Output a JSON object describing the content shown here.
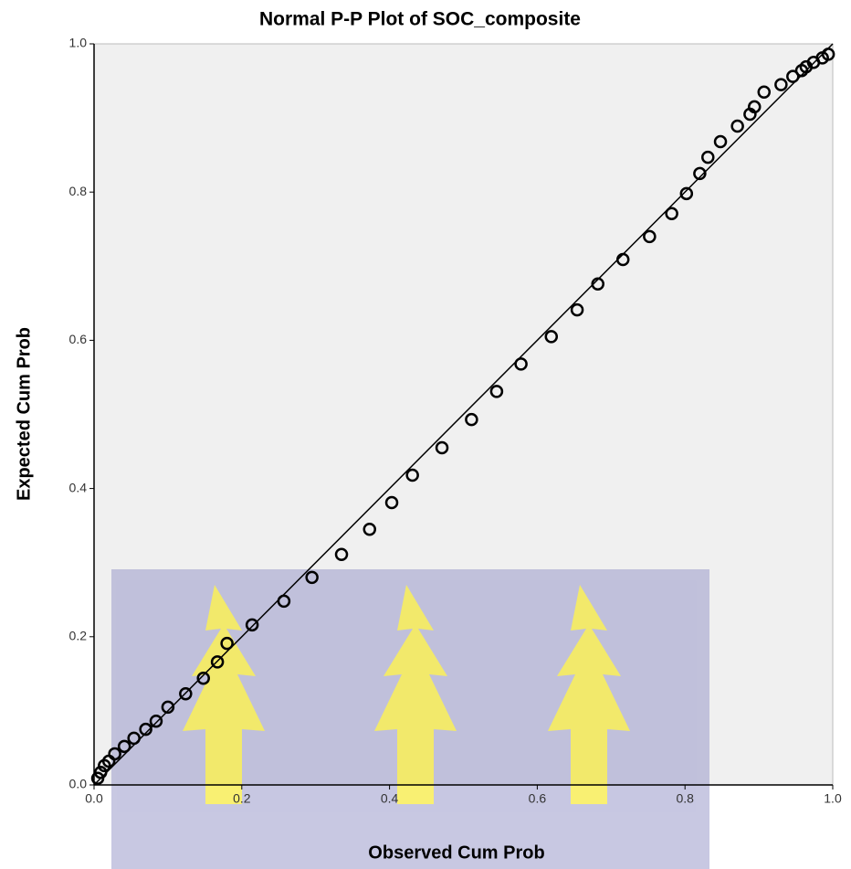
{
  "chart_data": {
    "type": "scatter",
    "title": "Normal P-P Plot of SOC_composite",
    "x_label": "Observed Cum Prob",
    "y_label": "Expected Cum Prob",
    "xlim": [
      0,
      1
    ],
    "ylim": [
      0,
      1
    ],
    "xticks": [
      {
        "value": 0,
        "label": "0.0"
      },
      0.2,
      0.4,
      0.6,
      0.8,
      {
        "value": 1,
        "label": "1.0"
      }
    ],
    "yticks": [
      {
        "value": 0,
        "label": "0.0"
      },
      0.2,
      0.4,
      0.6,
      0.8,
      {
        "value": 1,
        "label": "1.0"
      }
    ],
    "color": "#000000",
    "reference_line": {
      "x": [
        0,
        1
      ],
      "y": [
        0,
        1
      ]
    },
    "x": [
      0.005,
      0.009,
      0.014,
      0.02,
      0.028,
      0.041,
      0.054,
      0.07,
      0.084,
      0.1,
      0.124,
      0.148,
      0.167,
      0.18,
      0.214,
      0.257,
      0.295,
      0.335,
      0.373,
      0.403,
      0.431,
      0.471,
      0.511,
      0.545,
      0.578,
      0.619,
      0.654,
      0.682,
      0.716,
      0.752,
      0.782,
      0.802,
      0.82,
      0.831,
      0.848,
      0.871,
      0.888,
      0.894,
      0.907,
      0.93,
      0.946,
      0.958,
      0.964,
      0.974,
      0.986,
      0.994
    ],
    "values": [
      0.009,
      0.017,
      0.026,
      0.032,
      0.042,
      0.052,
      0.063,
      0.075,
      0.086,
      0.105,
      0.123,
      0.144,
      0.166,
      0.191,
      0.216,
      0.248,
      0.28,
      0.311,
      0.345,
      0.381,
      0.418,
      0.455,
      0.493,
      0.531,
      0.568,
      0.605,
      0.641,
      0.676,
      0.709,
      0.74,
      0.771,
      0.798,
      0.825,
      0.847,
      0.868,
      0.889,
      0.905,
      0.915,
      0.935,
      0.945,
      0.956,
      0.964,
      0.969,
      0.975,
      0.981,
      0.986
    ]
  }
}
